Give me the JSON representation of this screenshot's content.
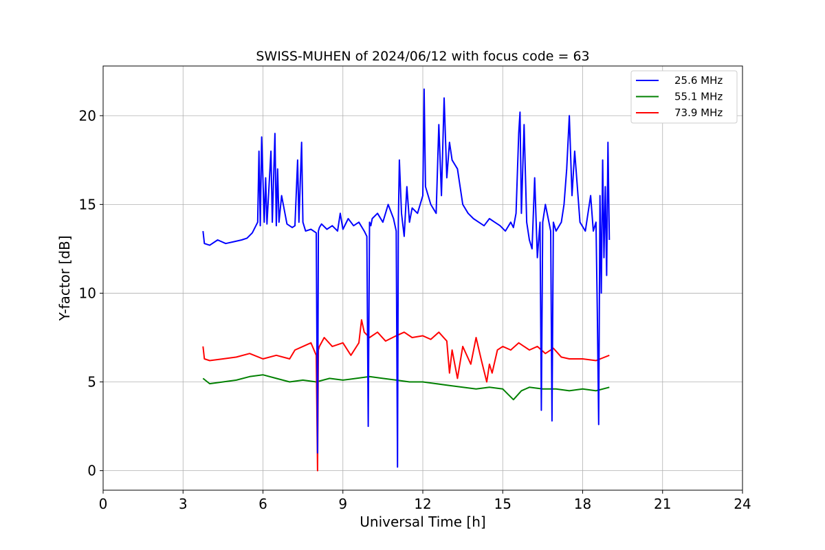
{
  "chart_data": {
    "type": "line",
    "title": "SWISS-MUHEN of 2024/06/12 with focus code = 63",
    "xlabel": "Universal Time [h]",
    "ylabel": "Y-factor [dB]",
    "xlim": [
      0,
      24
    ],
    "ylim": [
      -1.1,
      22.8
    ],
    "xticks": [
      0,
      3,
      6,
      9,
      12,
      15,
      18,
      21,
      24
    ],
    "yticks": [
      0,
      5,
      10,
      15,
      20
    ],
    "grid": true,
    "legend_position": "top-right",
    "series": [
      {
        "name": "25.6 MHz",
        "color": "#0000ff",
        "x": [
          3.75,
          3.8,
          4.0,
          4.3,
          4.6,
          4.9,
          5.2,
          5.4,
          5.6,
          5.8,
          5.85,
          5.9,
          5.95,
          6.05,
          6.1,
          6.15,
          6.3,
          6.35,
          6.45,
          6.5,
          6.55,
          6.6,
          6.7,
          6.9,
          7.1,
          7.2,
          7.3,
          7.35,
          7.45,
          7.5,
          7.6,
          7.8,
          8.0,
          8.05,
          8.08,
          8.12,
          8.2,
          8.4,
          8.6,
          8.8,
          8.9,
          9.0,
          9.2,
          9.4,
          9.6,
          9.8,
          9.9,
          9.95,
          10.0,
          10.05,
          10.1,
          10.3,
          10.5,
          10.7,
          10.9,
          11.0,
          11.05,
          11.08,
          11.12,
          11.2,
          11.3,
          11.4,
          11.5,
          11.6,
          11.8,
          12.0,
          12.05,
          12.1,
          12.3,
          12.5,
          12.6,
          12.7,
          12.8,
          12.9,
          13.0,
          13.1,
          13.3,
          13.5,
          13.7,
          13.9,
          14.1,
          14.3,
          14.5,
          14.7,
          14.9,
          15.1,
          15.3,
          15.4,
          15.5,
          15.6,
          15.65,
          15.7,
          15.8,
          15.9,
          16.0,
          16.1,
          16.2,
          16.3,
          16.4,
          16.45,
          16.5,
          16.6,
          16.8,
          16.85,
          16.9,
          17.0,
          17.2,
          17.3,
          17.4,
          17.5,
          17.6,
          17.7,
          17.9,
          18.1,
          18.3,
          18.4,
          18.5,
          18.55,
          18.6,
          18.65,
          18.7,
          18.75,
          18.8,
          18.85,
          18.9,
          18.95,
          19.0
        ],
        "y": [
          13.5,
          12.8,
          12.7,
          13.0,
          12.8,
          12.9,
          13.0,
          13.1,
          13.4,
          14.0,
          18.0,
          13.8,
          18.8,
          14.0,
          16.5,
          13.9,
          18.0,
          14.0,
          19.0,
          13.8,
          17.0,
          14.0,
          15.5,
          13.9,
          13.7,
          13.8,
          17.5,
          14.0,
          18.5,
          14.0,
          13.5,
          13.6,
          13.4,
          1.0,
          13.5,
          13.7,
          13.9,
          13.6,
          13.8,
          13.5,
          14.5,
          13.6,
          14.2,
          13.8,
          14.0,
          13.5,
          13.2,
          2.5,
          14.0,
          13.8,
          14.2,
          14.5,
          14.0,
          15.0,
          14.2,
          13.5,
          0.2,
          14.0,
          17.5,
          14.5,
          13.2,
          16.0,
          14.0,
          14.8,
          14.5,
          15.5,
          21.5,
          16.0,
          15.0,
          14.5,
          19.5,
          15.5,
          21.0,
          16.5,
          18.5,
          17.5,
          17.0,
          15.0,
          14.5,
          14.2,
          14.0,
          13.8,
          14.2,
          14.0,
          13.8,
          13.5,
          14.0,
          13.7,
          14.5,
          19.0,
          20.2,
          14.5,
          19.5,
          14.0,
          13.0,
          12.5,
          16.5,
          12.0,
          14.0,
          3.4,
          14.0,
          15.0,
          13.5,
          2.8,
          14.0,
          13.5,
          14.0,
          15.0,
          17.0,
          20.0,
          15.5,
          18.0,
          14.0,
          13.5,
          15.5,
          13.5,
          14.0,
          9.0,
          2.6,
          15.5,
          10.0,
          17.5,
          12.0,
          16.0,
          11.0,
          18.5,
          13.0
        ]
      },
      {
        "name": "55.1 MHz",
        "color": "#008000",
        "x": [
          3.75,
          4.0,
          4.5,
          5.0,
          5.5,
          6.0,
          6.5,
          7.0,
          7.5,
          8.0,
          8.5,
          9.0,
          9.5,
          10.0,
          10.5,
          11.0,
          11.5,
          12.0,
          12.5,
          13.0,
          13.5,
          14.0,
          14.5,
          15.0,
          15.2,
          15.4,
          15.7,
          16.0,
          16.5,
          17.0,
          17.5,
          18.0,
          18.5,
          19.0
        ],
        "y": [
          5.2,
          4.9,
          5.0,
          5.1,
          5.3,
          5.4,
          5.2,
          5.0,
          5.1,
          5.0,
          5.2,
          5.1,
          5.2,
          5.3,
          5.2,
          5.1,
          5.0,
          5.0,
          4.9,
          4.8,
          4.7,
          4.6,
          4.7,
          4.6,
          4.3,
          4.0,
          4.5,
          4.7,
          4.6,
          4.6,
          4.5,
          4.6,
          4.5,
          4.7
        ]
      },
      {
        "name": "73.9 MHz",
        "color": "#ff0000",
        "x": [
          3.75,
          3.8,
          4.0,
          4.5,
          5.0,
          5.5,
          6.0,
          6.5,
          7.0,
          7.2,
          7.5,
          7.8,
          8.0,
          8.05,
          8.08,
          8.12,
          8.3,
          8.6,
          9.0,
          9.3,
          9.6,
          9.7,
          9.8,
          10.0,
          10.3,
          10.6,
          11.0,
          11.3,
          11.6,
          12.0,
          12.3,
          12.6,
          12.9,
          13.0,
          13.1,
          13.3,
          13.5,
          13.8,
          14.0,
          14.2,
          14.4,
          14.5,
          14.6,
          14.8,
          15.0,
          15.3,
          15.6,
          16.0,
          16.3,
          16.6,
          16.9,
          17.2,
          17.5,
          18.0,
          18.5,
          19.0
        ],
        "y": [
          7.0,
          6.3,
          6.2,
          6.3,
          6.4,
          6.6,
          6.3,
          6.5,
          6.3,
          6.8,
          7.0,
          7.2,
          6.5,
          0.0,
          6.8,
          7.0,
          7.5,
          7.0,
          7.2,
          6.5,
          7.2,
          8.5,
          7.8,
          7.5,
          7.8,
          7.3,
          7.6,
          7.8,
          7.5,
          7.6,
          7.4,
          7.8,
          7.3,
          5.5,
          6.8,
          5.2,
          7.0,
          6.0,
          7.5,
          6.2,
          5.0,
          6.0,
          5.5,
          6.8,
          7.0,
          6.8,
          7.2,
          6.8,
          7.0,
          6.6,
          6.9,
          6.4,
          6.3,
          6.3,
          6.2,
          6.5
        ]
      }
    ]
  }
}
